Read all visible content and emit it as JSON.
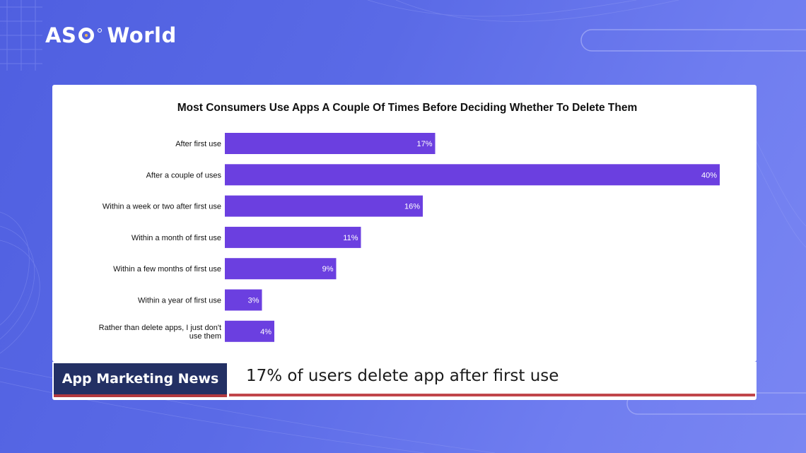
{
  "brand": {
    "logo_left": "AS",
    "logo_right": "World"
  },
  "colors": {
    "bar": "#6b3fe0",
    "bar_label": "#ffffff",
    "tag_bg": "#233064",
    "accent_line": "#c0454a"
  },
  "chart_data": {
    "type": "bar",
    "orientation": "horizontal",
    "title": "Most Consumers Use Apps A Couple Of Times Before Deciding Whether To Delete Them",
    "categories": [
      [
        "After first use"
      ],
      [
        "After a couple of uses"
      ],
      [
        "Within a week or two after first use"
      ],
      [
        "Within a month of first use"
      ],
      [
        "Within a few months of first use"
      ],
      [
        "Within a year of first use"
      ],
      [
        "Rather than delete apps, I just don't",
        "use them"
      ]
    ],
    "values": [
      17,
      40,
      16,
      11,
      9,
      3,
      4
    ],
    "value_labels": [
      "17%",
      "40%",
      "16%",
      "11%",
      "9%",
      "3%",
      "4%"
    ],
    "xlim": [
      0,
      40
    ],
    "grid": false,
    "legend": "none"
  },
  "footer": {
    "tag": "App Marketing News",
    "headline": "17% of users delete app after first use"
  }
}
